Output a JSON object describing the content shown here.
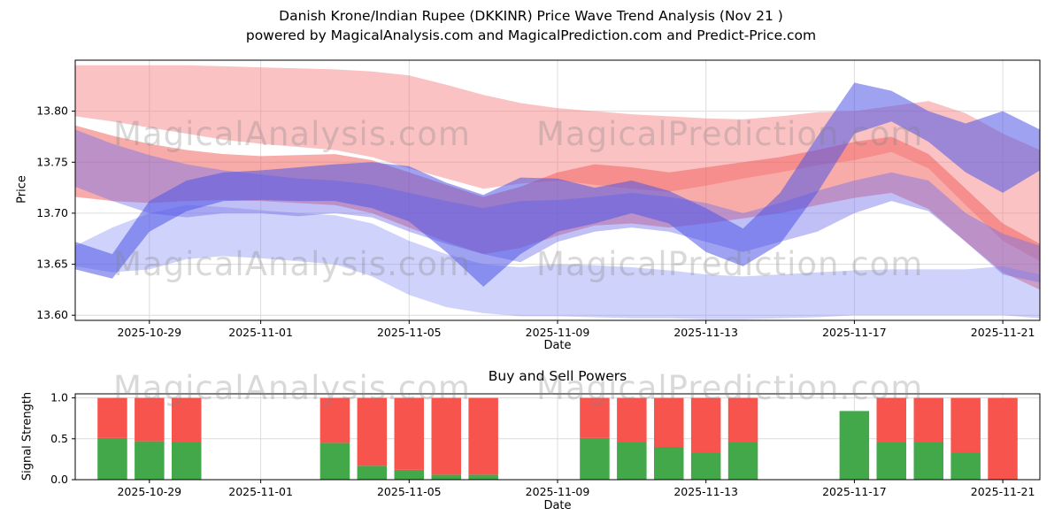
{
  "header": {
    "title_line1": "Danish Krone/Indian Rupee  (DKKINR) Price Wave Trend Analysis (Nov 21 )",
    "title_line2": "powered by MagicalAnalysis.com and MagicalPrediction.com and Predict-Price.com"
  },
  "watermarks": {
    "analysis": "MagicalAnalysis.com",
    "prediction": "MagicalPrediction.com"
  },
  "chart_data": [
    {
      "id": "price_wave_trend",
      "type": "area",
      "title": "",
      "xlabel": "Date",
      "ylabel": "Price",
      "ylim": [
        13.595,
        13.85
      ],
      "grid": true,
      "dates": [
        "2025-10-27",
        "2025-10-28",
        "2025-10-29",
        "2025-10-30",
        "2025-10-31",
        "2025-11-01",
        "2025-11-02",
        "2025-11-03",
        "2025-11-04",
        "2025-11-05",
        "2025-11-06",
        "2025-11-07",
        "2025-11-08",
        "2025-11-09",
        "2025-11-10",
        "2025-11-11",
        "2025-11-12",
        "2025-11-13",
        "2025-11-14",
        "2025-11-15",
        "2025-11-16",
        "2025-11-17",
        "2025-11-18",
        "2025-11-19",
        "2025-11-20",
        "2025-11-21",
        "2025-11-22"
      ],
      "xticks": [
        {
          "day": 2,
          "label": "2025-10-29"
        },
        {
          "day": 5,
          "label": "2025-11-01"
        },
        {
          "day": 9,
          "label": "2025-11-05"
        },
        {
          "day": 13,
          "label": "2025-11-09"
        },
        {
          "day": 17,
          "label": "2025-11-13"
        },
        {
          "day": 21,
          "label": "2025-11-17"
        },
        {
          "day": 25,
          "label": "2025-11-21"
        }
      ],
      "yticks": [
        {
          "value": 13.6,
          "label": "13.60"
        },
        {
          "value": 13.65,
          "label": "13.65"
        },
        {
          "value": 13.7,
          "label": "13.70"
        },
        {
          "value": 13.75,
          "label": "13.75"
        },
        {
          "value": 13.8,
          "label": "13.80"
        }
      ],
      "bands": [
        {
          "name": "resistance-outer",
          "color": "#f4777b",
          "opacity": 0.45,
          "upper": [
            13.845,
            13.845,
            13.845,
            13.845,
            13.844,
            13.843,
            13.842,
            13.841,
            13.839,
            13.835,
            13.826,
            13.816,
            13.808,
            13.803,
            13.8,
            13.797,
            13.795,
            13.793,
            13.792,
            13.795,
            13.799,
            13.8,
            13.805,
            13.81,
            13.798,
            13.778,
            13.762
          ],
          "lower": [
            13.795,
            13.79,
            13.784,
            13.778,
            13.772,
            13.768,
            13.765,
            13.762,
            13.755,
            13.744,
            13.734,
            13.724,
            13.729,
            13.732,
            13.728,
            13.724,
            13.721,
            13.727,
            13.734,
            13.74,
            13.747,
            13.752,
            13.76,
            13.744,
            13.708,
            13.673,
            13.653
          ]
        },
        {
          "name": "resistance-inner",
          "color": "#ef5a55",
          "opacity": 0.5,
          "upper": [
            13.786,
            13.776,
            13.768,
            13.762,
            13.758,
            13.756,
            13.757,
            13.758,
            13.752,
            13.74,
            13.728,
            13.716,
            13.726,
            13.74,
            13.748,
            13.745,
            13.74,
            13.745,
            13.75,
            13.755,
            13.762,
            13.77,
            13.775,
            13.758,
            13.724,
            13.69,
            13.67
          ],
          "lower": [
            13.716,
            13.712,
            13.71,
            13.712,
            13.713,
            13.712,
            13.71,
            13.708,
            13.7,
            13.686,
            13.672,
            13.66,
            13.666,
            13.678,
            13.688,
            13.69,
            13.686,
            13.69,
            13.695,
            13.7,
            13.708,
            13.715,
            13.72,
            13.704,
            13.672,
            13.642,
            13.625
          ]
        },
        {
          "name": "support-outer",
          "color": "#8289f2",
          "opacity": 0.38,
          "upper": [
            13.668,
            13.686,
            13.7,
            13.708,
            13.706,
            13.703,
            13.7,
            13.698,
            13.69,
            13.673,
            13.66,
            13.65,
            13.647,
            13.65,
            13.649,
            13.647,
            13.644,
            13.64,
            13.638,
            13.64,
            13.642,
            13.644,
            13.645,
            13.645,
            13.645,
            13.648,
            13.64
          ],
          "lower": [
            13.648,
            13.642,
            13.645,
            13.655,
            13.658,
            13.656,
            13.653,
            13.65,
            13.638,
            13.62,
            13.608,
            13.602,
            13.599,
            13.599,
            13.598,
            13.597,
            13.597,
            13.596,
            13.596,
            13.597,
            13.598,
            13.6,
            13.6,
            13.6,
            13.6,
            13.6,
            13.597
          ]
        },
        {
          "name": "trend-secondary",
          "color": "#7472ea",
          "opacity": 0.45,
          "upper": [
            13.782,
            13.768,
            13.757,
            13.748,
            13.742,
            13.738,
            13.734,
            13.732,
            13.728,
            13.72,
            13.712,
            13.705,
            13.712,
            13.713,
            13.716,
            13.72,
            13.716,
            13.71,
            13.7,
            13.71,
            13.722,
            13.732,
            13.74,
            13.732,
            13.7,
            13.68,
            13.668
          ],
          "lower": [
            13.726,
            13.712,
            13.7,
            13.696,
            13.7,
            13.7,
            13.697,
            13.7,
            13.696,
            13.682,
            13.67,
            13.66,
            13.652,
            13.672,
            13.682,
            13.686,
            13.682,
            13.672,
            13.662,
            13.672,
            13.682,
            13.7,
            13.712,
            13.702,
            13.672,
            13.64,
            13.632
          ]
        },
        {
          "name": "trend-main",
          "color": "#4e55e6",
          "opacity": 0.55,
          "upper": [
            13.672,
            13.66,
            13.712,
            13.732,
            13.74,
            13.742,
            13.745,
            13.748,
            13.75,
            13.746,
            13.73,
            13.718,
            13.735,
            13.734,
            13.725,
            13.732,
            13.722,
            13.705,
            13.685,
            13.72,
            13.775,
            13.828,
            13.82,
            13.8,
            13.788,
            13.8,
            13.782
          ],
          "lower": [
            13.645,
            13.636,
            13.682,
            13.702,
            13.712,
            13.713,
            13.712,
            13.712,
            13.705,
            13.692,
            13.662,
            13.628,
            13.66,
            13.682,
            13.69,
            13.7,
            13.69,
            13.662,
            13.648,
            13.67,
            13.72,
            13.778,
            13.79,
            13.77,
            13.74,
            13.72,
            13.742
          ]
        }
      ]
    },
    {
      "id": "buy_sell_powers",
      "type": "bar",
      "title": "Buy and Sell Powers",
      "xlabel": "Date",
      "ylabel": "Signal Strength",
      "ylim": [
        0,
        1.05
      ],
      "grid": true,
      "xticks": [
        {
          "day": 2,
          "label": "2025-10-29"
        },
        {
          "day": 5,
          "label": "2025-11-01"
        },
        {
          "day": 9,
          "label": "2025-11-05"
        },
        {
          "day": 13,
          "label": "2025-11-09"
        },
        {
          "day": 17,
          "label": "2025-11-13"
        },
        {
          "day": 21,
          "label": "2025-11-17"
        },
        {
          "day": 25,
          "label": "2025-11-21"
        }
      ],
      "yticks": [
        {
          "value": 0.0,
          "label": "0.0"
        },
        {
          "value": 0.5,
          "label": "0.5"
        },
        {
          "value": 1.0,
          "label": "1.0"
        }
      ],
      "colors": {
        "buy": "#42a84a",
        "sell": "#f8544e"
      },
      "bars": [
        {
          "date": "2025-10-28",
          "day": 1,
          "buy": 0.51,
          "sell": 0.49
        },
        {
          "date": "2025-10-29",
          "day": 2,
          "buy": 0.47,
          "sell": 0.53
        },
        {
          "date": "2025-10-30",
          "day": 3,
          "buy": 0.46,
          "sell": 0.54
        },
        {
          "date": "2025-11-03",
          "day": 7,
          "buy": 0.45,
          "sell": 0.55
        },
        {
          "date": "2025-11-04",
          "day": 8,
          "buy": 0.17,
          "sell": 0.83
        },
        {
          "date": "2025-11-05",
          "day": 9,
          "buy": 0.12,
          "sell": 0.88
        },
        {
          "date": "2025-11-06",
          "day": 10,
          "buy": 0.06,
          "sell": 0.94
        },
        {
          "date": "2025-11-07",
          "day": 11,
          "buy": 0.06,
          "sell": 0.94
        },
        {
          "date": "2025-11-10",
          "day": 14,
          "buy": 0.51,
          "sell": 0.49
        },
        {
          "date": "2025-11-11",
          "day": 15,
          "buy": 0.46,
          "sell": 0.54
        },
        {
          "date": "2025-11-12",
          "day": 16,
          "buy": 0.4,
          "sell": 0.6
        },
        {
          "date": "2025-11-13",
          "day": 17,
          "buy": 0.33,
          "sell": 0.67
        },
        {
          "date": "2025-11-14",
          "day": 18,
          "buy": 0.46,
          "sell": 0.54
        },
        {
          "date": "2025-11-17",
          "day": 21,
          "buy": 0.84,
          "sell": 0.0
        },
        {
          "date": "2025-11-18",
          "day": 22,
          "buy": 0.46,
          "sell": 0.54
        },
        {
          "date": "2025-11-19",
          "day": 23,
          "buy": 0.46,
          "sell": 0.54
        },
        {
          "date": "2025-11-20",
          "day": 24,
          "buy": 0.33,
          "sell": 0.67
        },
        {
          "date": "2025-11-21",
          "day": 25,
          "buy": 0.0,
          "sell": 1.0
        }
      ]
    }
  ]
}
